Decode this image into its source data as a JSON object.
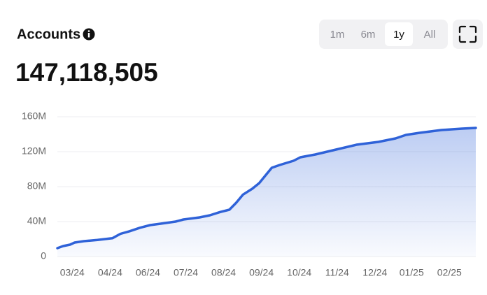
{
  "chart_data": {
    "type": "area",
    "title": "Accounts",
    "subtitle": "147,118,505",
    "ranges": [
      "1m",
      "6m",
      "1y",
      "All"
    ],
    "selected_range": "1y",
    "color": "#2f62d8",
    "grid": true,
    "x": [
      0,
      5,
      11,
      15,
      23,
      35,
      48,
      55,
      63,
      72,
      81,
      90,
      103,
      110,
      124,
      133,
      142,
      150,
      156,
      162,
      170,
      176,
      182,
      187,
      194,
      206,
      212,
      225,
      243,
      261,
      280,
      295,
      304,
      316,
      335,
      353,
      365
    ],
    "values": [
      9.6,
      12,
      13.6,
      16,
      17.6,
      19,
      21,
      26,
      29,
      33,
      36,
      37.6,
      40,
      42.4,
      44.8,
      47.2,
      51,
      53.6,
      61.6,
      71,
      77.6,
      84,
      93.6,
      101.6,
      104.8,
      109.6,
      113.6,
      116.8,
      122.4,
      128,
      131.2,
      135.2,
      139.2,
      141.6,
      144.8,
      146.4,
      147.2
    ],
    "xlim": [
      0,
      365
    ],
    "xticks": [
      {
        "value": 13,
        "label": "03/24"
      },
      {
        "value": 46,
        "label": "04/24"
      },
      {
        "value": 79,
        "label": "06/24"
      },
      {
        "value": 112,
        "label": "07/24"
      },
      {
        "value": 145,
        "label": "08/24"
      },
      {
        "value": 178,
        "label": "09/24"
      },
      {
        "value": 211,
        "label": "10/24"
      },
      {
        "value": 244,
        "label": "11/24"
      },
      {
        "value": 277,
        "label": "12/24"
      },
      {
        "value": 309,
        "label": "01/25"
      },
      {
        "value": 342,
        "label": "02/25"
      }
    ],
    "ylim": [
      0,
      160
    ],
    "yticks": [
      0,
      {
        "value": 40,
        "label": "40M"
      },
      {
        "value": 80,
        "label": "80M"
      },
      {
        "value": 120,
        "label": "120M"
      },
      {
        "value": 160,
        "label": "160M"
      }
    ]
  }
}
